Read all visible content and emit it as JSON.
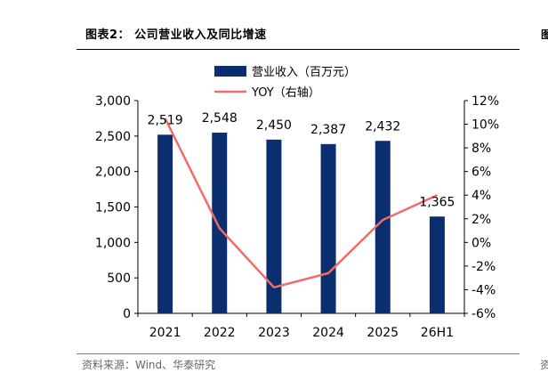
{
  "figure": {
    "title": "图表2：  公司营业收入及同比增速",
    "source": "资料来源：Wind、华泰研究",
    "edge_mark": "图",
    "edge_source": "资"
  },
  "chart_data": {
    "type": "bar",
    "categories": [
      "2021",
      "2022",
      "2023",
      "2024",
      "2025",
      "26H1"
    ],
    "series": [
      {
        "name": "营业收入（百万元）",
        "type": "bar",
        "axis": "left",
        "color": "#0b2f6e",
        "values": [
          2519,
          2548,
          2450,
          2387,
          2432,
          1365
        ],
        "labels": [
          "2,519",
          "2,548",
          "2,450",
          "2,387",
          "2,432",
          "1,365"
        ]
      },
      {
        "name": "YOY（右轴）",
        "type": "line",
        "axis": "right",
        "color": "#f26b6b",
        "values": [
          10.5,
          1.2,
          -3.8,
          -2.6,
          1.9,
          4.0
        ]
      }
    ],
    "y_left": {
      "min": 0,
      "max": 3000,
      "ticks": [
        "0",
        "500",
        "1,000",
        "1,500",
        "2,000",
        "2,500",
        "3,000"
      ]
    },
    "y_right": {
      "min": -6,
      "max": 12,
      "ticks": [
        "-6%",
        "-4%",
        "-2%",
        "0%",
        "2%",
        "4%",
        "6%",
        "8%",
        "10%",
        "12%"
      ]
    },
    "legend_position": "top-center",
    "grid": false
  }
}
